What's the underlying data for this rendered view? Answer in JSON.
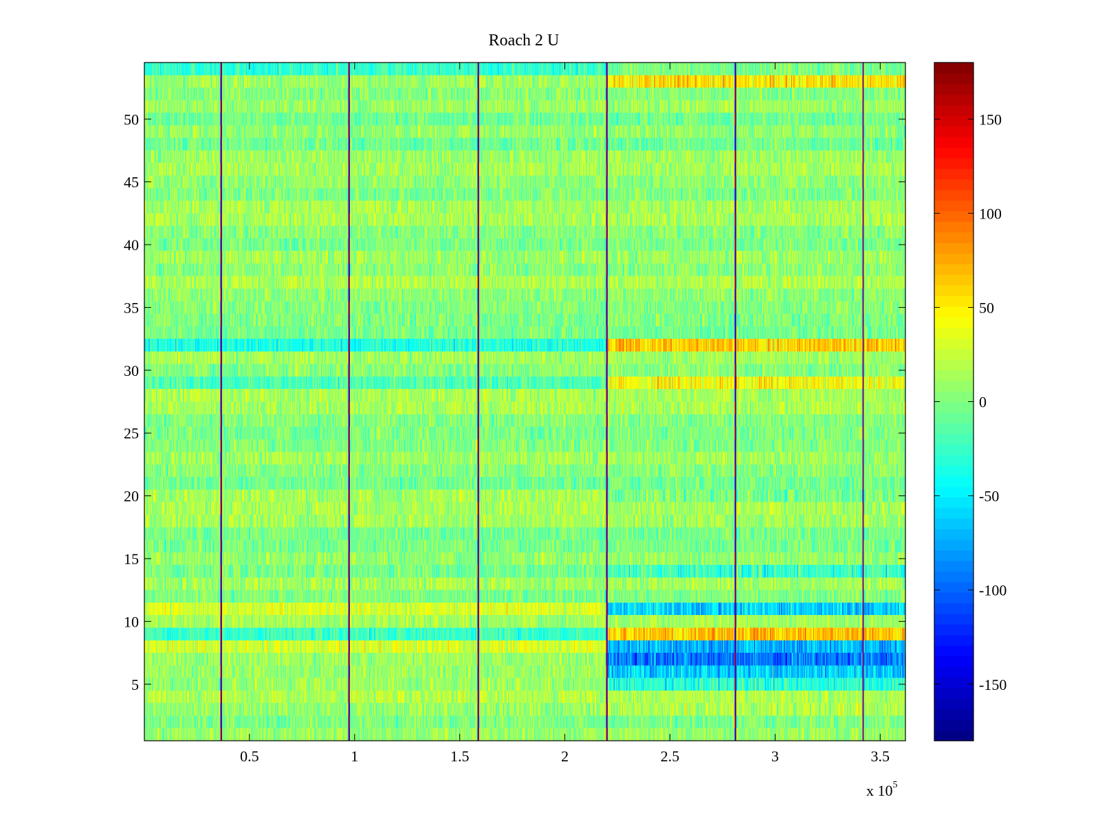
{
  "chart_data": {
    "type": "heatmap",
    "title": "Roach 2 U",
    "xlabel": "",
    "ylabel": "",
    "x_multiplier_label": "x 10",
    "x_multiplier_exponent": "5",
    "xlim": [
      0,
      3.62
    ],
    "ylim": [
      0.5,
      54.5
    ],
    "x_ticks": [
      0.5,
      1,
      1.5,
      2,
      2.5,
      3,
      3.5
    ],
    "x_tick_labels": [
      "0.5",
      "1",
      "1.5",
      "2",
      "2.5",
      "3",
      "3.5"
    ],
    "y_ticks": [
      5,
      10,
      15,
      20,
      25,
      30,
      35,
      40,
      45,
      50
    ],
    "y_tick_labels": [
      "5",
      "10",
      "15",
      "20",
      "25",
      "30",
      "35",
      "40",
      "45",
      "50"
    ],
    "rows": 54,
    "segment_boundaries": [
      0.365,
      0.975,
      1.59,
      2.2,
      2.81,
      3.42
    ],
    "colorbar": {
      "colormap": "jet",
      "min": -180,
      "max": 180,
      "ticks": [
        150,
        100,
        50,
        0,
        -50,
        -100,
        -150
      ],
      "tick_labels": [
        "150",
        "100",
        "50",
        "0",
        "-50",
        "-100",
        "-150"
      ]
    },
    "description_of_values": "Noisy phase values mostly near 0 to +20 in the first segment region; after x = 2.2e5 rows 6-8 and 11 drop to about -80, rows 9, 29 and 32 rise to about +60"
  },
  "colors": {
    "background": "#ffffff",
    "axes": "#000000"
  }
}
